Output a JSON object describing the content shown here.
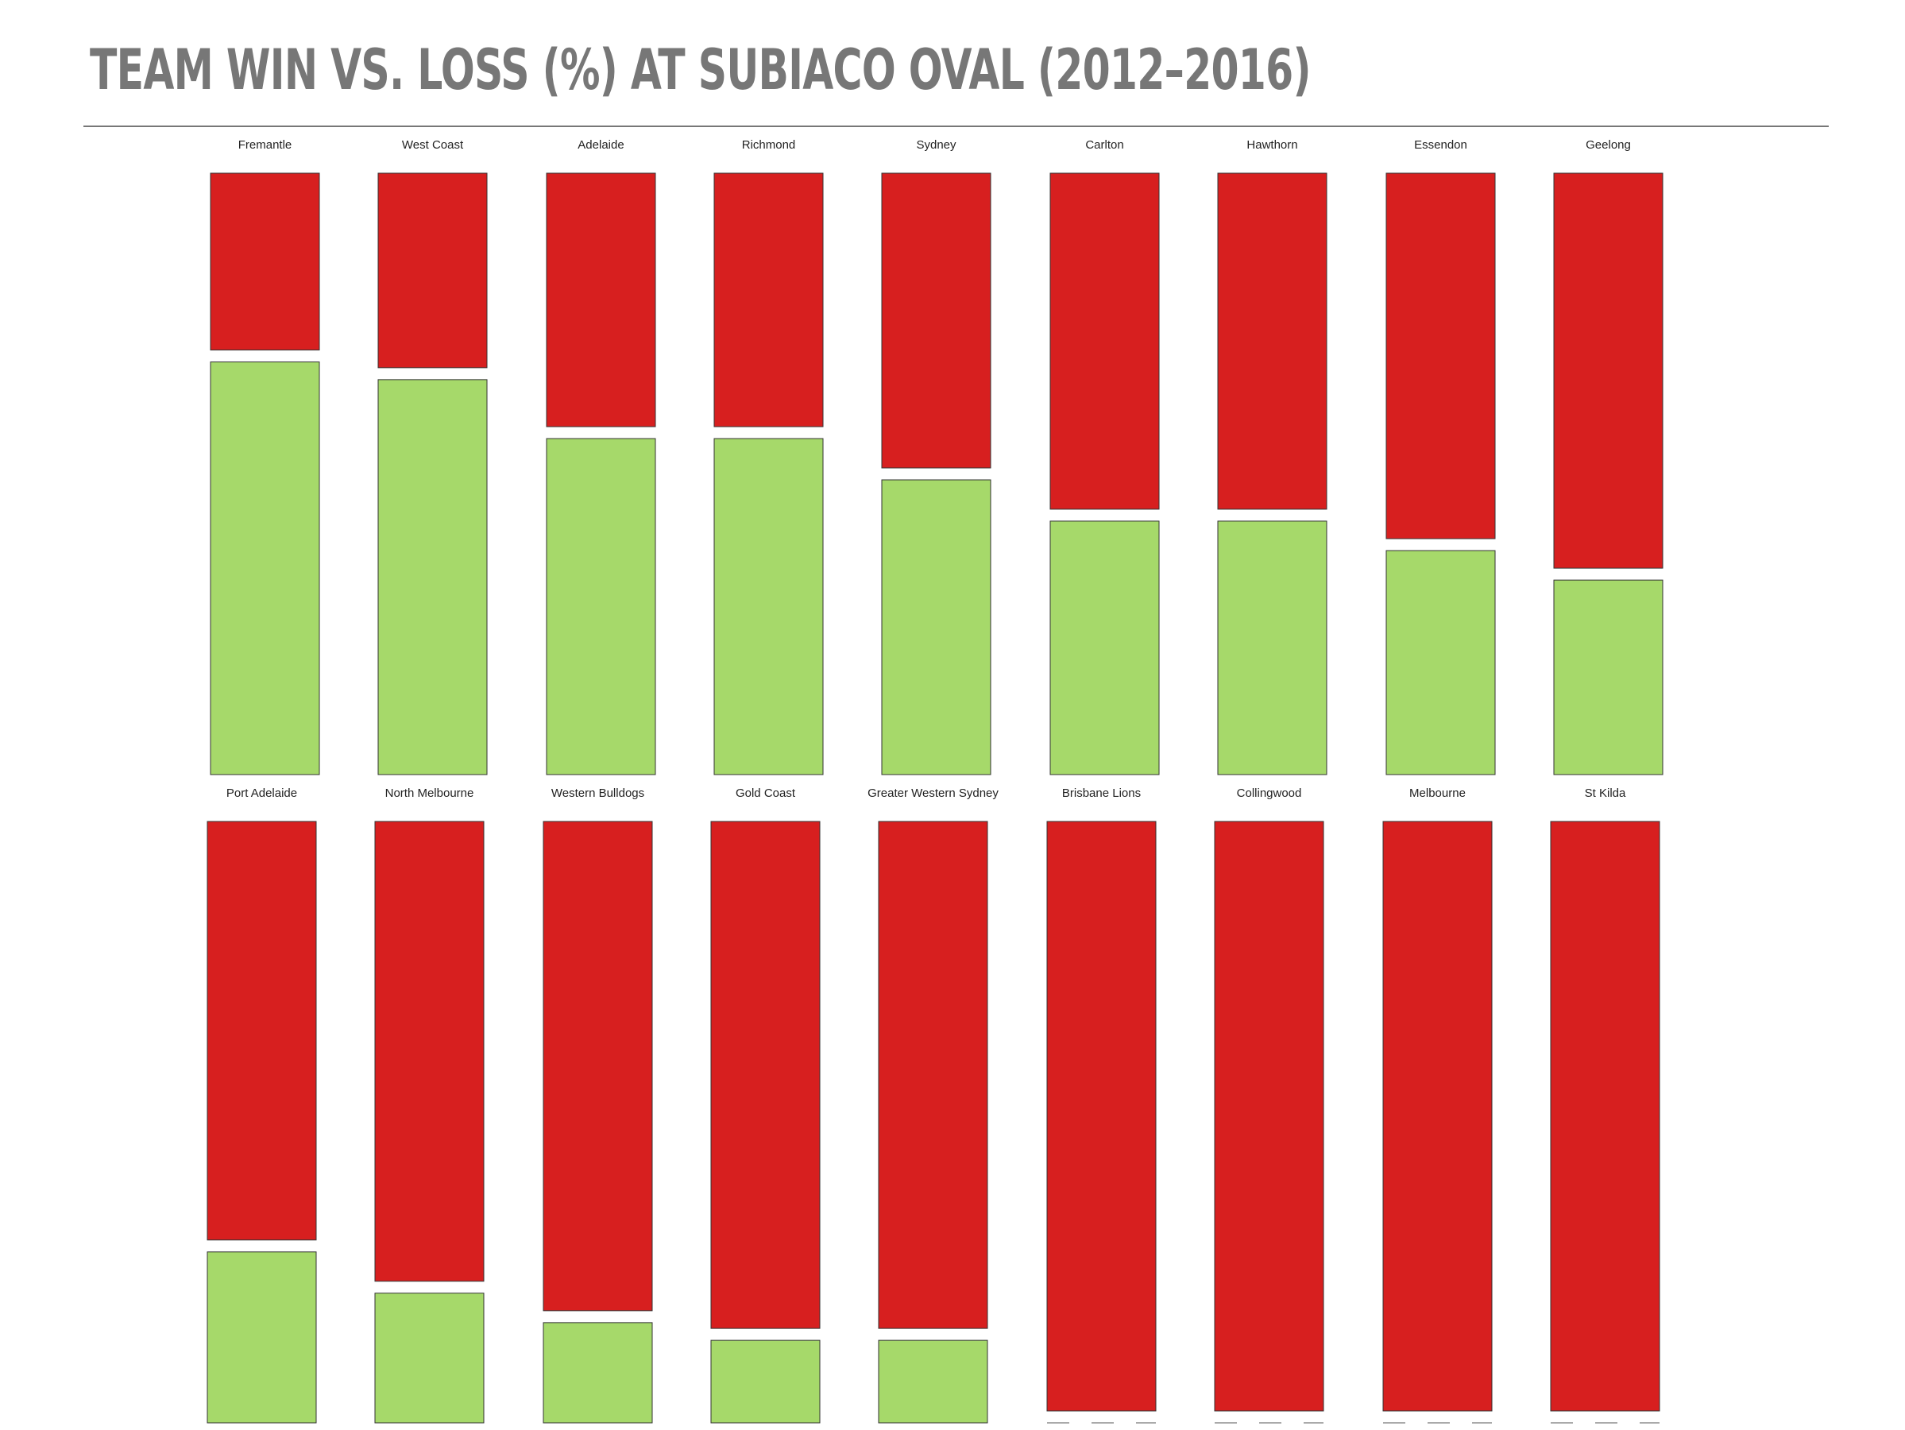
{
  "chart_data": {
    "type": "bar",
    "title": "TEAM WIN VS. LOSS (%) AT SUBIACO OVAL (2012–2016)",
    "layout": "small-multiples 100% stacked columns",
    "series_colors": {
      "win": "#a6d96a",
      "loss": "#d71f1f"
    },
    "panels": [
      {
        "team": "Fremantle",
        "win": 70,
        "loss": 30
      },
      {
        "team": "West Coast",
        "win": 67,
        "loss": 33
      },
      {
        "team": "Adelaide",
        "win": 57,
        "loss": 43
      },
      {
        "team": "Richmond",
        "win": 57,
        "loss": 43
      },
      {
        "team": "Sydney",
        "win": 50,
        "loss": 50
      },
      {
        "team": "Carlton",
        "win": 43,
        "loss": 57
      },
      {
        "team": "Hawthorn",
        "win": 43,
        "loss": 57
      },
      {
        "team": "Essendon",
        "win": 38,
        "loss": 62
      },
      {
        "team": "Geelong",
        "win": 33,
        "loss": 67
      },
      {
        "team": "Port Adelaide",
        "win": 29,
        "loss": 71
      },
      {
        "team": "North Melbourne",
        "win": 22,
        "loss": 78
      },
      {
        "team": "Western Bulldogs",
        "win": 17,
        "loss": 83
      },
      {
        "team": "Gold Coast",
        "win": 14,
        "loss": 86
      },
      {
        "team": "Greater Western Sydney",
        "win": 14,
        "loss": 86
      },
      {
        "team": "Brisbane Lions",
        "win": 0,
        "loss": 100
      },
      {
        "team": "Collingwood",
        "win": 0,
        "loss": 100
      },
      {
        "team": "Melbourne",
        "win": 0,
        "loss": 100
      },
      {
        "team": "St Kilda",
        "win": 0,
        "loss": 100
      }
    ]
  }
}
